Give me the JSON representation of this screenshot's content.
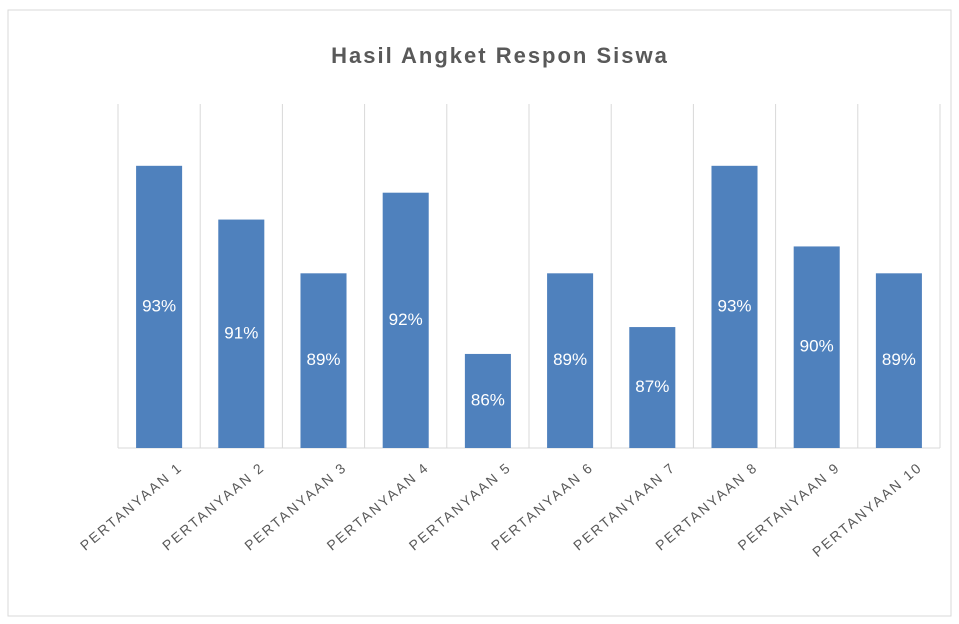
{
  "chart_data": {
    "type": "bar",
    "title": "Hasil Angket Respon Siswa",
    "categories": [
      "PERTANYAAN 1",
      "PERTANYAAN 2",
      "PERTANYAAN 3",
      "PERTANYAAN 4",
      "PERTANYAAN 5",
      "PERTANYAAN 6",
      "PERTANYAAN 7",
      "PERTANYAAN 8",
      "PERTANYAAN 9",
      "PERTANYAAN 10"
    ],
    "values": [
      93,
      91,
      89,
      92,
      86,
      89,
      87,
      93,
      90,
      89
    ],
    "value_labels": [
      "93%",
      "91%",
      "89%",
      "92%",
      "86%",
      "89%",
      "87%",
      "93%",
      "90%",
      "89%"
    ],
    "color": "#4f81bd",
    "ylim": [
      82.5,
      95.3
    ]
  }
}
